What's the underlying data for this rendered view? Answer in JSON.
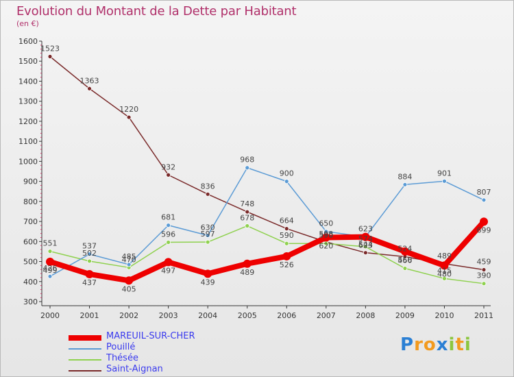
{
  "title": "Evolution du Montant de la Dette par Habitant",
  "subtitle": "(en €)",
  "brand": {
    "letters": [
      "P",
      "r",
      "o",
      "x",
      "i",
      "t",
      "i"
    ],
    "colors": [
      "#2a7fd4",
      "#f29a1e",
      "#f29a1e",
      "#2a7fd4",
      "#8cc63f",
      "#f29a1e",
      "#8cc63f"
    ]
  },
  "chart_data": {
    "type": "line",
    "x": [
      "2000",
      "2001",
      "2002",
      "2003",
      "2004",
      "2005",
      "2006",
      "2007",
      "2008",
      "2009",
      "2010",
      "2011"
    ],
    "ylim": [
      300,
      1600
    ],
    "yticks": [
      "300",
      "400",
      "500",
      "600",
      "700",
      "800",
      "900",
      "1000",
      "1100",
      "1200",
      "1300",
      "1400",
      "1500",
      "1600"
    ],
    "grid": false,
    "legend_position": "bottom-left",
    "series": [
      {
        "name": "MAREUIL-SUR-CHER",
        "color": "#ee0000",
        "values": [
          499,
          437,
          405,
          497,
          439,
          489,
          526,
          620,
          623,
          550,
          480,
          699
        ],
        "labels": [
          "499",
          "437",
          "405",
          "497",
          "439",
          "489",
          "526",
          "620",
          "623",
          "550",
          "480",
          "699"
        ]
      },
      {
        "name": "Pouillé",
        "color": "#5b9bd5",
        "values": [
          426,
          537,
          485,
          681,
          630,
          968,
          900,
          650,
          623,
          884,
          901,
          807
        ],
        "labels": [
          "426",
          "537",
          "485",
          "681",
          "630",
          "968",
          "900",
          "650",
          "623",
          "884",
          "901",
          "807"
        ]
      },
      {
        "name": "Thésée",
        "color": "#8fd14f",
        "values": [
          551,
          502,
          470,
          596,
          597,
          678,
          590,
          590,
          574,
          466,
          415,
          390
        ],
        "labels": [
          "551",
          "502",
          "470",
          "596",
          "597",
          "678",
          "590",
          "590",
          "574",
          "466",
          "415",
          "390"
        ]
      },
      {
        "name": "Saint-Aignan",
        "color": "#7a2a2a",
        "values": [
          1523,
          1363,
          1220,
          932,
          836,
          748,
          664,
          598,
          544,
          524,
          489,
          459
        ],
        "labels": [
          "1523",
          "1363",
          "1220",
          "932",
          "836",
          "748",
          "664",
          "598",
          "544",
          "524",
          "489",
          "459"
        ]
      }
    ]
  }
}
